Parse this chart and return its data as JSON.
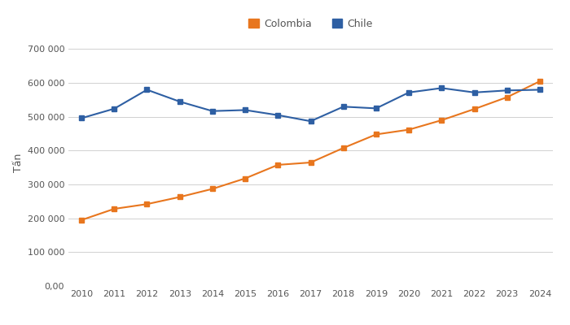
{
  "years": [
    2010,
    2011,
    2012,
    2013,
    2014,
    2015,
    2016,
    2017,
    2018,
    2019,
    2020,
    2021,
    2022,
    2023,
    2024
  ],
  "colombia": [
    195000,
    228000,
    242000,
    263000,
    287000,
    318000,
    358000,
    365000,
    408000,
    448000,
    462000,
    490000,
    523000,
    558000,
    605000
  ],
  "chile": [
    496000,
    524000,
    580000,
    545000,
    517000,
    520000,
    505000,
    487000,
    530000,
    525000,
    572000,
    585000,
    572000,
    578000,
    580000
  ],
  "colombia_color": "#E8761E",
  "chile_color": "#2E5FA3",
  "ylabel": "Tấn",
  "colombia_label": "Colombia",
  "chile_label": "Chile",
  "ylim": [
    0,
    730000
  ],
  "yticks": [
    0,
    100000,
    200000,
    300000,
    400000,
    500000,
    600000,
    700000
  ],
  "ytick_labels": [
    "0,00",
    "100 000",
    "200 000",
    "300 000",
    "400 000",
    "500 000",
    "600 000",
    "700 000"
  ],
  "background_color": "#ffffff",
  "grid_color": "#d0d0d0"
}
